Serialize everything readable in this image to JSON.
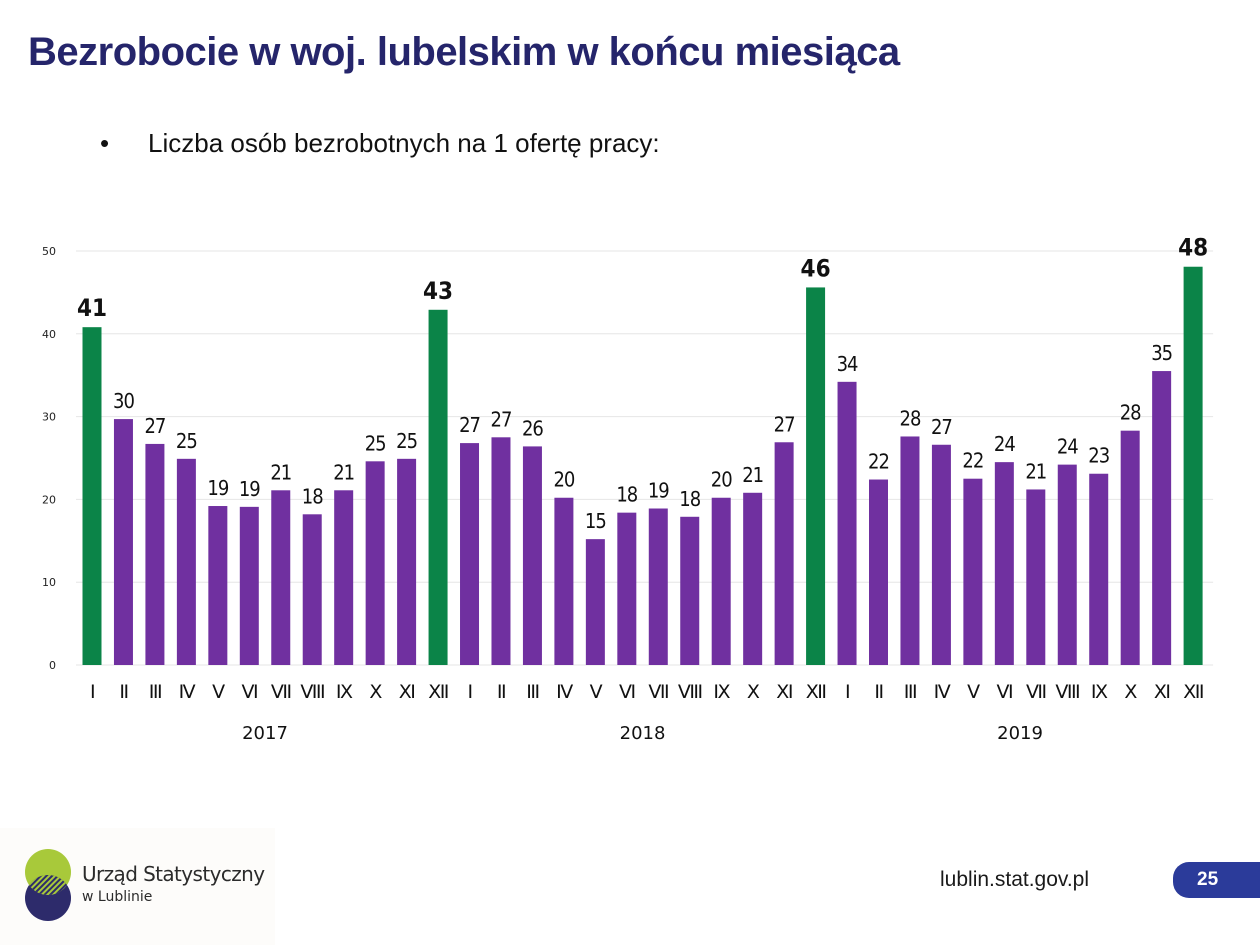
{
  "slide": {
    "title": "Bezrobocie w woj. lubelskim w końcu miesiąca",
    "bullet": "Liczba osób bezrobotnych na 1 ofertę pracy:",
    "bullet_symbol": "•",
    "footer": {
      "logo_line1": "Urząd Statystyczny",
      "logo_line2": "w Lublinie",
      "website": "lublin.stat.gov.pl",
      "page_number": "25"
    }
  },
  "colors": {
    "title": "#25256b",
    "bar_regular": "#7030a0",
    "bar_highlight": "#0b8448",
    "gridline": "#e6e6e6",
    "page_badge": "#2b3b9a",
    "logo_green": "#a8c93a",
    "logo_navy": "#2d2b6b"
  },
  "chart_data": {
    "type": "bar",
    "title": "",
    "xlabel": "",
    "ylabel": "",
    "ylim": [
      0,
      50
    ],
    "yticks": [
      0,
      10,
      20,
      30,
      40,
      50
    ],
    "grid": true,
    "legend": "none",
    "groups": [
      "2017",
      "2018",
      "2019"
    ],
    "categories": [
      "I",
      "II",
      "III",
      "IV",
      "V",
      "VI",
      "VII",
      "VIII",
      "IX",
      "X",
      "XI",
      "XII",
      "I",
      "II",
      "III",
      "IV",
      "V",
      "VI",
      "VII",
      "VIII",
      "IX",
      "X",
      "XI",
      "XII",
      "I",
      "II",
      "III",
      "IV",
      "V",
      "VI",
      "VII",
      "VIII",
      "IX",
      "X",
      "XI",
      "XII"
    ],
    "values": [
      40.8,
      29.7,
      26.7,
      24.9,
      19.2,
      19.1,
      21.1,
      18.2,
      21.1,
      24.6,
      24.9,
      42.9,
      26.8,
      27.5,
      26.4,
      20.2,
      15.2,
      18.4,
      18.9,
      17.9,
      20.2,
      20.8,
      26.9,
      45.6,
      34.2,
      22.4,
      27.6,
      26.6,
      22.5,
      24.5,
      21.2,
      24.2,
      23.1,
      28.3,
      35.5,
      48.1
    ],
    "labels": [
      "41",
      "30",
      "27",
      "25",
      "19",
      "19",
      "21",
      "18",
      "21",
      "25",
      "25",
      "43",
      "27",
      "27",
      "26",
      "20",
      "15",
      "18",
      "19",
      "18",
      "20",
      "21",
      "27",
      "46",
      "34",
      "22",
      "28",
      "27",
      "22",
      "24",
      "21",
      "24",
      "23",
      "28",
      "35",
      "48"
    ],
    "highlight": [
      true,
      false,
      false,
      false,
      false,
      false,
      false,
      false,
      false,
      false,
      false,
      true,
      false,
      false,
      false,
      false,
      false,
      false,
      false,
      false,
      false,
      false,
      false,
      true,
      false,
      false,
      false,
      false,
      false,
      false,
      false,
      false,
      false,
      false,
      false,
      true
    ]
  }
}
